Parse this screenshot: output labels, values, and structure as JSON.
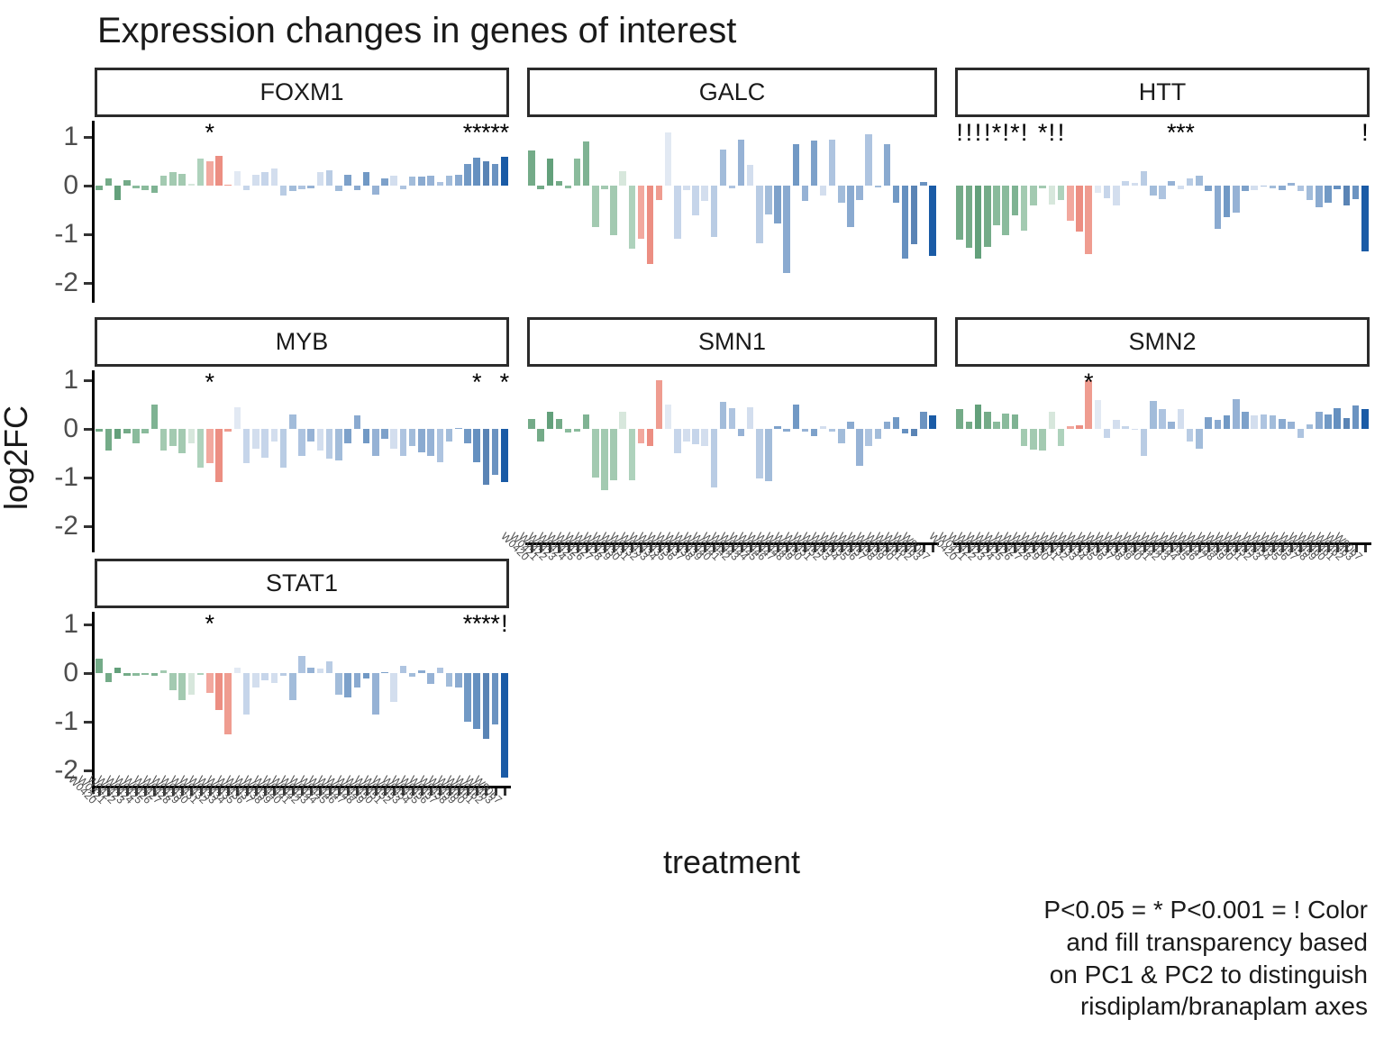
{
  "title": "Expression changes in genes of interest",
  "y_axis_title": "log2FC",
  "x_axis_title": "treatment",
  "caption_lines": [
    "P<0.05 = * P<0.001 = ! Color",
    "and fill transparency based",
    "on PC1 & PC2 to distinguish",
    "risdiplam/branaplam axes"
  ],
  "chart_data": {
    "type": "bar",
    "faceted": true,
    "title": "Expression changes in genes of interest",
    "xlabel": "treatment",
    "ylabel": "log2FC",
    "ylim": [
      -2.35,
      1.3
    ],
    "y_ticks": [
      1,
      0,
      -1,
      -2
    ],
    "grid": false,
    "legend": "none",
    "significance_legend": "P<0.05 = * P<0.001 = !",
    "color_meaning": "Color and fill transparency based on PC1 & PC2 to distinguish risdiplam/branaplam axes",
    "categories": [
      "W0420",
      "W0421",
      "W0422",
      "W0423",
      "W0424",
      "W0425",
      "W0426",
      "W0427",
      "W0428",
      "W0429",
      "W0430",
      "W0431",
      "W0432",
      "W0433",
      "W0434",
      "W0435",
      "W0436",
      "W0437",
      "W0438",
      "W0439",
      "W0440",
      "W0441",
      "W0442",
      "W0443",
      "W0444",
      "W0445",
      "W0446",
      "W0447",
      "W0448",
      "W0449",
      "W0450",
      "W0451",
      "W0452",
      "W0453",
      "W0454",
      "W0455",
      "W0456",
      "W0457",
      "W0458",
      "W0459",
      "W0460",
      "W0461",
      "W0462",
      "W0463",
      "W9067"
    ],
    "bar_colors": [
      "#74ab88",
      "#74ab88",
      "#63a07b",
      "#74ab88",
      "#8abb9c",
      "#8abb9c",
      "#7fb393",
      "#a3cab1",
      "#a3cab1",
      "#a3cab1",
      "#d7e7dc",
      "#aed2bc",
      "#f2a89e",
      "#ec8e82",
      "#ef9c90",
      "#e2e9f3",
      "#c6d5ea",
      "#d3deee",
      "#c6d5ea",
      "#d3deee",
      "#b9cce4",
      "#a2bcda",
      "#aec4e0",
      "#96b2d5",
      "#d3deee",
      "#b9cce4",
      "#a2bcda",
      "#7da1ca",
      "#8aaad0",
      "#7199c5",
      "#96b2d5",
      "#7da1ca",
      "#d3deee",
      "#aec4e0",
      "#a2bcda",
      "#8aaad0",
      "#96b2d5",
      "#aec4e0",
      "#a2bcda",
      "#8aaad0",
      "#7199c5",
      "#6590c0",
      "#5a84b5",
      "#6b93c1",
      "#1a5ba6"
    ],
    "facets": [
      {
        "name": "FOXM1",
        "row": 0,
        "col": 0,
        "values": [
          -0.1,
          0.15,
          -0.3,
          0.12,
          -0.05,
          -0.1,
          -0.15,
          0.2,
          0.28,
          0.25,
          0.03,
          0.55,
          0.5,
          0.62,
          0.02,
          0.3,
          -0.1,
          0.22,
          0.28,
          0.35,
          -0.2,
          -0.12,
          -0.08,
          -0.05,
          0.28,
          0.32,
          -0.12,
          0.22,
          -0.1,
          0.28,
          -0.18,
          0.15,
          0.2,
          -0.08,
          0.18,
          0.18,
          0.2,
          0.07,
          0.2,
          0.22,
          0.45,
          0.58,
          0.5,
          0.45,
          0.6
        ],
        "sig": [
          {
            "i": 13,
            "s": "*"
          },
          {
            "i": 41,
            "s": "*"
          },
          {
            "i": 42,
            "s": "*"
          },
          {
            "i": 43,
            "s": "*"
          },
          {
            "i": 44,
            "s": "*"
          },
          {
            "i": 45,
            "s": "*"
          }
        ]
      },
      {
        "name": "GALC",
        "row": 0,
        "col": 1,
        "values": [
          0.72,
          -0.08,
          0.55,
          0.1,
          -0.05,
          0.55,
          0.9,
          -0.85,
          -0.07,
          -1.02,
          0.3,
          -1.3,
          -1.1,
          -1.62,
          -0.3,
          1.1,
          -1.1,
          -0.1,
          -0.62,
          -0.32,
          -1.05,
          0.75,
          -0.05,
          0.95,
          0.42,
          -1.18,
          -0.6,
          -0.78,
          -1.8,
          0.85,
          -0.32,
          0.92,
          -0.2,
          0.95,
          -0.35,
          -0.85,
          -0.3,
          1.05,
          -0.03,
          0.85,
          -0.35,
          -1.5,
          -1.2,
          0.07,
          -1.45
        ],
        "sig": []
      },
      {
        "name": "HTT",
        "row": 0,
        "col": 2,
        "values": [
          -1.12,
          -1.28,
          -1.5,
          -1.25,
          -0.82,
          -1.02,
          -0.62,
          -0.92,
          -0.4,
          -0.05,
          -0.38,
          -0.3,
          -0.72,
          -0.95,
          -1.4,
          -0.15,
          -0.25,
          -0.4,
          0.1,
          0.05,
          0.3,
          -0.2,
          -0.28,
          0.1,
          -0.08,
          0.15,
          0.2,
          -0.12,
          -0.88,
          -0.65,
          -0.55,
          -0.12,
          -0.1,
          -0.02,
          -0.05,
          -0.1,
          0.05,
          -0.12,
          -0.3,
          -0.45,
          -0.35,
          -0.08,
          -0.4,
          -0.28,
          -1.35
        ],
        "sig": [
          {
            "i": 1,
            "s": "!"
          },
          {
            "i": 2,
            "s": "!"
          },
          {
            "i": 3,
            "s": "!"
          },
          {
            "i": 4,
            "s": "!"
          },
          {
            "i": 5,
            "s": "*"
          },
          {
            "i": 6,
            "s": "!"
          },
          {
            "i": 7,
            "s": "*"
          },
          {
            "i": 8,
            "s": "!"
          },
          {
            "i": 10,
            "s": "*"
          },
          {
            "i": 11,
            "s": "!"
          },
          {
            "i": 12,
            "s": "!"
          },
          {
            "i": 24,
            "s": "*"
          },
          {
            "i": 25,
            "s": "*"
          },
          {
            "i": 26,
            "s": "*"
          },
          {
            "i": 45,
            "s": "!"
          }
        ]
      },
      {
        "name": "MYB",
        "row": 1,
        "col": 0,
        "values": [
          -0.05,
          -0.45,
          -0.2,
          -0.1,
          -0.3,
          -0.1,
          0.5,
          -0.45,
          -0.35,
          -0.5,
          -0.3,
          -0.8,
          -0.7,
          -1.1,
          -0.05,
          0.45,
          -0.7,
          -0.4,
          -0.6,
          -0.25,
          -0.8,
          0.3,
          -0.55,
          -0.25,
          -0.45,
          -0.62,
          -0.65,
          -0.3,
          0.28,
          -0.3,
          -0.55,
          -0.2,
          -0.4,
          -0.55,
          -0.35,
          -0.48,
          -0.55,
          -0.68,
          -0.25,
          0.02,
          -0.3,
          -0.68,
          -1.15,
          -0.95,
          -1.1
        ],
        "sig": [
          {
            "i": 13,
            "s": "*"
          },
          {
            "i": 42,
            "s": "*"
          },
          {
            "i": 45,
            "s": "*"
          }
        ]
      },
      {
        "name": "SMN1",
        "row": 1,
        "col": 1,
        "values": [
          0.2,
          -0.25,
          0.35,
          0.2,
          -0.08,
          -0.05,
          0.3,
          -1.0,
          -1.25,
          -1.05,
          0.35,
          -1.05,
          -0.3,
          -0.35,
          1.0,
          0.5,
          -0.5,
          -0.25,
          -0.32,
          -0.35,
          -1.2,
          0.55,
          0.42,
          -0.15,
          0.45,
          -1.02,
          -1.08,
          0.05,
          -0.05,
          0.5,
          -0.05,
          -0.15,
          0.05,
          -0.05,
          -0.3,
          0.15,
          -0.75,
          -0.35,
          -0.2,
          0.15,
          0.25,
          -0.1,
          -0.15,
          0.35,
          0.28
        ],
        "sig": []
      },
      {
        "name": "SMN2",
        "row": 1,
        "col": 2,
        "values": [
          0.4,
          0.15,
          0.5,
          0.35,
          0.15,
          0.32,
          0.3,
          -0.35,
          -0.42,
          -0.45,
          0.35,
          -0.35,
          0.05,
          0.08,
          1.0,
          0.6,
          -0.18,
          0.18,
          0.05,
          -0.02,
          -0.55,
          0.58,
          0.4,
          0.15,
          0.4,
          -0.25,
          -0.4,
          0.25,
          0.18,
          0.28,
          0.62,
          0.35,
          0.28,
          0.3,
          0.28,
          0.2,
          0.15,
          -0.18,
          0.1,
          0.35,
          0.3,
          0.42,
          0.22,
          0.48,
          0.4
        ],
        "sig": [
          {
            "i": 15,
            "s": "*"
          }
        ]
      },
      {
        "name": "STAT1",
        "row": 2,
        "col": 0,
        "values": [
          0.3,
          -0.18,
          0.12,
          -0.05,
          -0.05,
          -0.04,
          -0.06,
          0.05,
          -0.35,
          -0.55,
          -0.45,
          -0.03,
          -0.4,
          -0.75,
          -1.25,
          0.12,
          -0.85,
          -0.3,
          -0.15,
          -0.2,
          -0.05,
          -0.55,
          0.35,
          0.12,
          0.1,
          0.25,
          -0.45,
          -0.5,
          -0.3,
          -0.12,
          -0.85,
          0.02,
          -0.6,
          0.15,
          -0.08,
          0.05,
          -0.22,
          0.12,
          -0.28,
          -0.3,
          -1.0,
          -1.15,
          -1.35,
          -1.05,
          -2.15
        ],
        "sig": [
          {
            "i": 13,
            "s": "*"
          },
          {
            "i": 41,
            "s": "*"
          },
          {
            "i": 42,
            "s": "*"
          },
          {
            "i": 43,
            "s": "*"
          },
          {
            "i": 44,
            "s": "*"
          },
          {
            "i": 45,
            "s": "!"
          }
        ]
      }
    ]
  }
}
